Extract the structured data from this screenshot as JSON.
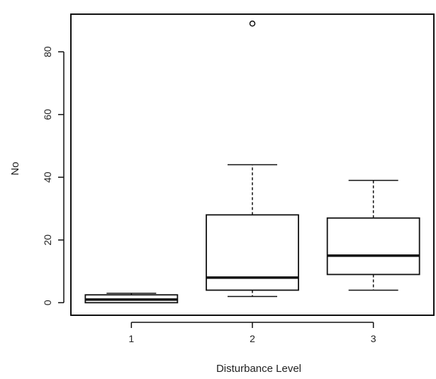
{
  "chart_data": {
    "type": "boxplot",
    "title": "",
    "xlabel": "Disturbance Level",
    "ylabel": "No",
    "ylim": [
      -4,
      92
    ],
    "y_ticks": [
      0,
      20,
      40,
      60,
      80
    ],
    "categories": [
      "1",
      "2",
      "3"
    ],
    "boxes": [
      {
        "category": "1",
        "whisker_low": 0,
        "q1": 0,
        "median": 1,
        "q3": 2.5,
        "whisker_high": 3,
        "outliers": []
      },
      {
        "category": "2",
        "whisker_low": 2,
        "q1": 4,
        "median": 8,
        "q3": 28,
        "whisker_high": 44,
        "outliers": [
          89
        ]
      },
      {
        "category": "3",
        "whisker_low": 4,
        "q1": 9,
        "median": 15,
        "q3": 27,
        "whisker_high": 39,
        "outliers": []
      }
    ],
    "grid": false,
    "colors": {
      "stroke": "#111111",
      "background": "#ffffff"
    }
  }
}
